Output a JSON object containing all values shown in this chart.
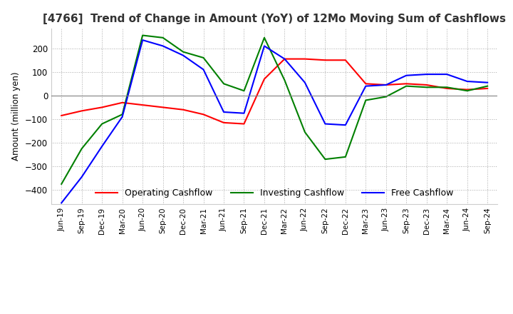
{
  "title": "[4766]  Trend of Change in Amount (YoY) of 12Mo Moving Sum of Cashflows",
  "ylabel": "Amount (million yen)",
  "x_labels": [
    "Jun-19",
    "Sep-19",
    "Dec-19",
    "Mar-20",
    "Jun-20",
    "Sep-20",
    "Dec-20",
    "Mar-21",
    "Jun-21",
    "Sep-21",
    "Dec-21",
    "Mar-22",
    "Jun-22",
    "Sep-22",
    "Dec-22",
    "Mar-23",
    "Jun-23",
    "Sep-23",
    "Dec-23",
    "Mar-24",
    "Jun-24",
    "Sep-24"
  ],
  "operating": [
    -85,
    -65,
    -50,
    -30,
    -40,
    -50,
    -60,
    -80,
    -115,
    -120,
    70,
    155,
    155,
    150,
    150,
    50,
    45,
    50,
    45,
    30,
    25,
    30
  ],
  "investing": [
    -375,
    -225,
    -120,
    -80,
    255,
    245,
    185,
    160,
    50,
    20,
    245,
    65,
    -155,
    -270,
    -260,
    -20,
    -5,
    40,
    35,
    35,
    20,
    40
  ],
  "free": [
    -455,
    -345,
    -215,
    -90,
    235,
    210,
    170,
    110,
    -70,
    -75,
    210,
    155,
    55,
    -120,
    -125,
    40,
    45,
    85,
    90,
    90,
    60,
    55
  ],
  "operating_color": "#ff0000",
  "investing_color": "#008000",
  "free_color": "#0000ff",
  "ylim": [
    -460,
    285
  ],
  "yticks": [
    -400,
    -300,
    -200,
    -100,
    0,
    100,
    200
  ],
  "grid_color": "#aaaaaa",
  "background_color": "#ffffff",
  "title_fontsize": 11,
  "legend_labels": [
    "Operating Cashflow",
    "Investing Cashflow",
    "Free Cashflow"
  ]
}
